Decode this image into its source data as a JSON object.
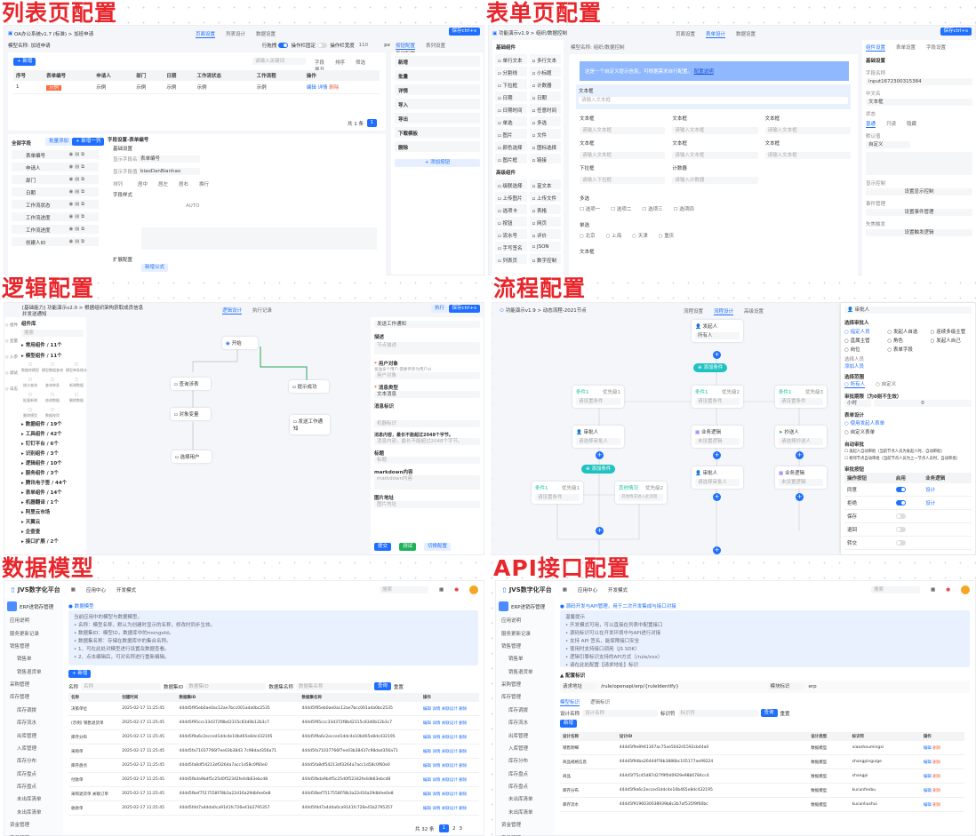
{
  "titles": {
    "list": "列表页配置",
    "form": "表单页配置",
    "logic": "逻辑配置",
    "flow": "流程配置",
    "model": "数据模型",
    "api": "API接口配置"
  },
  "colors": {
    "primary": "#1e6fff",
    "title_red": "#e8262c",
    "success": "#1fb25a",
    "teal": "#1fc2c0"
  },
  "save": "保存ctrl+s",
  "list": {
    "breadcrumb": "OA办公系统v1.7 (标准) > 加班申请",
    "tabs": [
      "页面设置",
      "列表设计",
      "数据设置"
    ],
    "model_name": "模型名称: 加班申请",
    "row_drag": "行拖拽",
    "fixed_op": "操作栏固定",
    "op_width_label": "操作栏宽度",
    "op_width": "110",
    "px": "px",
    "right_tabs": [
      "按钮配置",
      "表列设置",
      "其他配置"
    ],
    "add": "+ 新增",
    "search_ph": "请输入关键词",
    "toolbar": [
      "字段",
      "排序",
      "筛选",
      "展开"
    ],
    "columns": [
      "序号",
      "表单编号",
      "申请人",
      "部门",
      "日期",
      "工作流状态",
      "工作流程",
      "操作"
    ],
    "row": [
      "1",
      "示例",
      "示例",
      "示例",
      "示例",
      "示例",
      "示例"
    ],
    "row_ops": [
      "编辑",
      "详情",
      "删除"
    ],
    "pager": "共 1 条",
    "fields_title": "全部字段",
    "batch_add": "批量添加",
    "add_col": "+ 新增一列",
    "fields": [
      "表单编号",
      "申请人",
      "部门",
      "日期",
      "工作流状态",
      "工作流进度",
      "工作流进度",
      "创建人ID"
    ],
    "setting_title": "字段设置-表单编号",
    "basic": "基础设置",
    "show_name_label": "显示字段名",
    "show_name": "表单编号",
    "show_val_label": "显示字段值",
    "show_val": "biaoDanBianhao",
    "align_label": "排列",
    "aligns": [
      "居中",
      "居左",
      "居右",
      "换行"
    ],
    "style": "字段样式",
    "auto": "AUTO",
    "ext": "扩展配置",
    "new_formula": "新增公式",
    "open_design": "打开逻辑",
    "buttons": [
      "新增",
      "批量",
      "详情",
      "导入",
      "导出",
      "下载模板",
      "删除"
    ],
    "add_button": "+ 添加按钮"
  },
  "form": {
    "breadcrumb": "功能演示v1.9 > 组织/数据控制",
    "tabs": [
      "页面设置",
      "表单设计",
      "数据设置"
    ],
    "model_name": "模型名称: 组织/数据控制",
    "basic_title": "基础组件",
    "basic": [
      "单行文本",
      "多行文本",
      "分割线",
      "小标题",
      "下拉框",
      "计数器",
      "日期",
      "日期",
      "日期时间",
      "任意时间",
      "单选",
      "多选",
      "图片",
      "文件",
      "颜色选择",
      "图标选择",
      "图片框",
      "链接"
    ],
    "adv_title": "高级组件",
    "adv": [
      "级联选择",
      "富文本",
      "上传图片",
      "上传文件",
      "选项卡",
      "表格",
      "按钮",
      "网页",
      "流水号",
      "评价",
      "手写签名",
      "JSON",
      "列表页",
      "数字控制"
    ],
    "banner": "这是一个自定义提示信息，可根据需求自行配置。",
    "banner_link": "配置说明",
    "textbox": "文本框",
    "textbox_ph": "请输入文本框",
    "select": "下拉框",
    "select_ph": "请输入下拉框",
    "counter": "计数器",
    "counter_ph": "请输入计数器",
    "multi": "多选",
    "multi_opts": [
      "选项一",
      "选项二",
      "选项三",
      "选项四"
    ],
    "single": "单选",
    "single_opts": [
      "北京",
      "上海",
      "天津",
      "重庆"
    ],
    "right_tabs": [
      "组件设置",
      "表单设置",
      "字段设置"
    ],
    "r_basic": "基础设置",
    "field_name": "字段名称",
    "field_val": "input1672300315384",
    "cn_name": "中文名",
    "cn_val": "文本框",
    "state": "状态",
    "states": [
      "普通",
      "只读",
      "隐藏"
    ],
    "default": "默认值",
    "default_val": "自定义",
    "display": "显示控制",
    "display_btn": "设置显示控制",
    "event": "事件管理",
    "event_btn": "设置事件管理",
    "blur": "失焦触发",
    "blur_btn": "设置触发逻辑"
  },
  "logic": {
    "breadcrumb": "[基础能力] 功能演示v2.0 > 根据组织架构获取成员信息并发送通知",
    "tabs": [
      "逻辑设计",
      "执行记录"
    ],
    "run": "执行",
    "nav": [
      "组件",
      "变量",
      "入参",
      "调试",
      "日志"
    ],
    "lib": "组件库",
    "search": "搜索",
    "groups_top": [
      "常用组件 / 11个",
      "模型组件 / 11个"
    ],
    "grid": [
      "数据库模型",
      "模型数据查询",
      "模型单条统计",
      "统计查询",
      "查询单条",
      "新增数据",
      "批量新增",
      "修改数据",
      "删除数据",
      "删除模型",
      "数据校验"
    ],
    "groups": [
      "数据组件 / 19个",
      "工具组件 / 42个",
      "钉钉平台 / 6个",
      "识别组件 / 3个",
      "逻辑组件 / 10个",
      "服务组件 / 3个",
      "腾讯电子签 / 44个",
      "表单组件 / 14个",
      "机器翻译 / 1个",
      "阿里云市场",
      "天翼云",
      "企查查",
      "接口扩展 / 2个"
    ],
    "nodes": [
      "开始",
      "查询涉表",
      "提示成功",
      "对象变量",
      "发送工作通知",
      "选择用户"
    ],
    "r_title": "发送工作通知",
    "desc": "描述",
    "desc_ph": "节点描述",
    "user": "用户对象",
    "user_hint": "发送多个用户,需要传参为用户id",
    "user_ph": "用户对象",
    "msg_type": "消息类型",
    "msg_type_val": "文本消息",
    "msg_id": "消息标识",
    "msg_id_ph": "机器标识",
    "content": "消息内容，最长不能超过2048个字节。",
    "content_ph": "消息内容，最长不能超过2048个字节。",
    "title_lbl": "标题",
    "title_ph": "标题",
    "md": "markdown内容",
    "md_ph": "markdown内容",
    "img": "图片地址",
    "img_ph": "图片地址",
    "submit": "提交",
    "test": "测试",
    "switch": "切换配置"
  },
  "flow": {
    "breadcrumb": "功能演示v1.9 > 动态流程-2021节点",
    "tabs": [
      "流程设置",
      "流程设计",
      "高级设置"
    ],
    "starter": "发起人",
    "starter_val": "所有人",
    "add_cond": "添加条件",
    "conds": [
      {
        "name": "条件1",
        "prio": "优先级1",
        "val": "请设置条件"
      },
      {
        "name": "条件1",
        "prio": "优先级2",
        "val": "请设置条件"
      },
      {
        "name": "条件1",
        "prio": "优先级3",
        "val": "请设置条件"
      }
    ],
    "approver": "审批人",
    "approver_val": "请选择审批人",
    "logic": "业务逻辑",
    "logic_val": "未设置逻辑",
    "cc": "抄送人",
    "cc_val": "请选择抄送人",
    "sub_conds": [
      {
        "name": "条件1",
        "prio": "优先级1",
        "val": "请设置条件"
      },
      {
        "name": "其他情况",
        "prio": "优先级2",
        "val": "其他情况进入此流程"
      }
    ],
    "r_title": "审批人",
    "choose": "选择审批人",
    "choose_opts": [
      "指定人员",
      "发起人自选",
      "连续多级主管",
      "直属主管",
      "角色",
      "发起人自己",
      "岗位",
      "表单字段"
    ],
    "pick": "选择人员",
    "add_user": "添加人员",
    "range": "选择范围",
    "range_opts": [
      "所有人",
      "自定义"
    ],
    "limit": "审批期限（为0则不生效）",
    "hour": "小时",
    "limit_val": "0",
    "form_design": "表单设计",
    "form_opts": [
      "使用发起人表单",
      "自定义表单"
    ],
    "auto": "自动审批",
    "auto_opts": [
      "发起人自动审批（当前节点人员为发起人时，自动审批）",
      "相邻节点自动审批（当前节点人员为上一节点人员时，自动审批）"
    ],
    "btns": "审批按钮",
    "btn_cols": [
      "操作按钮",
      "启用",
      "业务逻辑"
    ],
    "btn_rows": [
      {
        "name": "同意",
        "on": true,
        "link": "设计"
      },
      {
        "name": "拒绝",
        "on": true,
        "link": "设计"
      },
      {
        "name": "保存",
        "on": false,
        "link": ""
      },
      {
        "name": "退回",
        "on": false,
        "link": ""
      },
      {
        "name": "转交",
        "on": false,
        "link": ""
      }
    ]
  },
  "shell": {
    "brand": "JVS数字化平台",
    "menu": [
      "应用中心",
      "开发模式"
    ],
    "search": "搜索",
    "app": "ERP进销存管理",
    "side": [
      "应用说明",
      "服务更新记录",
      "销售管理",
      "销售单",
      "销售退货单",
      "采购管理",
      "库存管理",
      "库存调拨",
      "库存流水",
      "出库管理",
      "入库管理",
      "库存分布",
      "库存盘点",
      "库存盘点",
      "未出库清单",
      "未出库清单",
      "资金管理",
      "商品管理",
      "客户管理",
      "配置中心"
    ],
    "tabs": [
      "基础设计",
      "数据模型",
      "列表表单",
      "审批流程",
      "业务逻辑",
      "设计权限",
      "辅助权限",
      "模型权限",
      "源码标识",
      "版本管理",
      "应用日志"
    ]
  },
  "model": {
    "head": "数据模型",
    "info": [
      "当前应用中的模型与数据模型。",
      "• 名称：模型名称，默认为创建时显示的名称，修改时同步生效。",
      "• 数据集ID：模型ID，数据库中的mongoId。",
      "• 数据集名称：存储在数据库中的集合名称。",
      "• 1、可在此处对模型进行设置及数据查看。",
      "• 2、点击编辑后，可对名称进行重新编辑。"
    ],
    "add": "+ 新增",
    "f_name": "名称",
    "f_name_ph": "名称",
    "f_id": "数据集ID",
    "f_id_ph": "数据集ID",
    "f_set": "数据集名称",
    "f_set_ph": "数据集名称",
    "query": "查询",
    "reset": "重置",
    "cols": [
      "名称",
      "创建时间",
      "数据集ID",
      "数据集名称",
      "操作"
    ],
    "rows": [
      [
        "决策单位",
        "2025-02-17 11:25:45",
        "444d5f95eb0ae0ac12ae7bcc001ada0bc2535",
        "444d5f95eb0ae0ac12ae7bcc001ada0bc2535"
      ],
      [
        "(示例) 销售退货单",
        "2025-02-17 11:25:45",
        "444d5f95ccc33d372f8b42315c83d0b12b3c7",
        "444d5f95ccc33d372f8b42315c83d0b12b3c7"
      ],
      [
        "库存分布",
        "2025-02-17 11:25:45",
        "444d5f9a6c2ecced1ddc4e10b465e8dc432195",
        "444d5f9a6c2ecced1ddc4e10b465e8dc432195"
      ],
      [
        "采购单",
        "2025-02-17 11:25:45",
        "444d5fa71037766f7ee03b3843 7c98dad356a71",
        "444d5fa71037766f7ee03b38437c98dad356a71"
      ],
      [
        "库存盘点",
        "2025-02-17 11:25:45",
        "444d5fa8df54213df3264a7acc1d58c0f60e0",
        "444d5fa8df54213df3264a7acc1d58c0f60e0"
      ],
      [
        "付款单",
        "2025-02-17 11:25:45",
        "444d5fbda9bdf5c25d0f52342fe4db63ebcd8",
        "444d5fbda9bdf5c25d0f52342fe4db63ebcd8"
      ],
      [
        "采购退货单 关联订单",
        "2025-02-17 11:25:45",
        "444d5fbef7517558f78b3a22d16a29dbfee0e8",
        "444d5fbef7517558f78b3a22d16a29dbfee0e8"
      ],
      [
        "收款单",
        "2025-02-17 11:25:45",
        "444d5fdd7a4dda0ca9141fc726e41b2795357",
        "444d5fdd7a4dda0ca9141fc726e41b2795357"
      ]
    ],
    "ops": [
      "编辑",
      "详情",
      "关联设计",
      "删除"
    ],
    "total": "共 32 条",
    "pages": [
      "1",
      "2",
      "3"
    ]
  },
  "api": {
    "head": "源码开发与API管理，用于二次开发集成与接口对接",
    "info": [
      "温馨提示",
      "• 开发模式可用，可以直接在列表中配置接口",
      "• 源码标识可以在开发环境中与API进行对接",
      "• 支持 API 签名，能保障接口安全",
      "• 使用时支持接口调用（JS SDK）",
      "• 逻辑引擎标识支持的API方式（/rule/xxx）",
      "• 请在此处配置【请求地址】标识"
    ],
    "cfg": "配置标识",
    "req_lbl": "请求地址",
    "req": "/rule/openapi/erp/{ruleIdentify}",
    "mod_lbl": "模块标识",
    "mod": "erp",
    "tabs": [
      "模型标识",
      "逻辑标识"
    ],
    "f_name": "设计名称",
    "f_name_ph": "设计名称",
    "f_id": "标识符",
    "f_id_ph": "标识符",
    "query": "查询",
    "reset": "重置",
    "add": "新增",
    "cols": [
      "设计名称",
      "设计ID",
      "设计类型",
      "标识符",
      "操作"
    ],
    "rows": [
      [
        "销售明细",
        "444d5f9e8941307ac75ae5042d1592cb44a0",
        "数据模型",
        "xiaoshoumingxi"
      ],
      [
        "商品规格信息",
        "444d5f94ba26444f78b3886bc105177ae99224",
        "数据模型",
        "shangpinguige"
      ],
      [
        "商品",
        "444d5f75c45d87d27f9f0d0929e98b0784cc4",
        "数据模型",
        "shangpi"
      ],
      [
        "库存分布",
        "444d5f9a6c2ecced1ddc4e10b465e8dc432195",
        "数据模型",
        "kucunfenbu"
      ],
      [
        "库存流水",
        "444d5f9196030038939b8c2b7af535f9f60bc",
        "数据模型",
        "kucunliushui"
      ]
    ],
    "ops": [
      "编辑",
      "删除"
    ]
  }
}
